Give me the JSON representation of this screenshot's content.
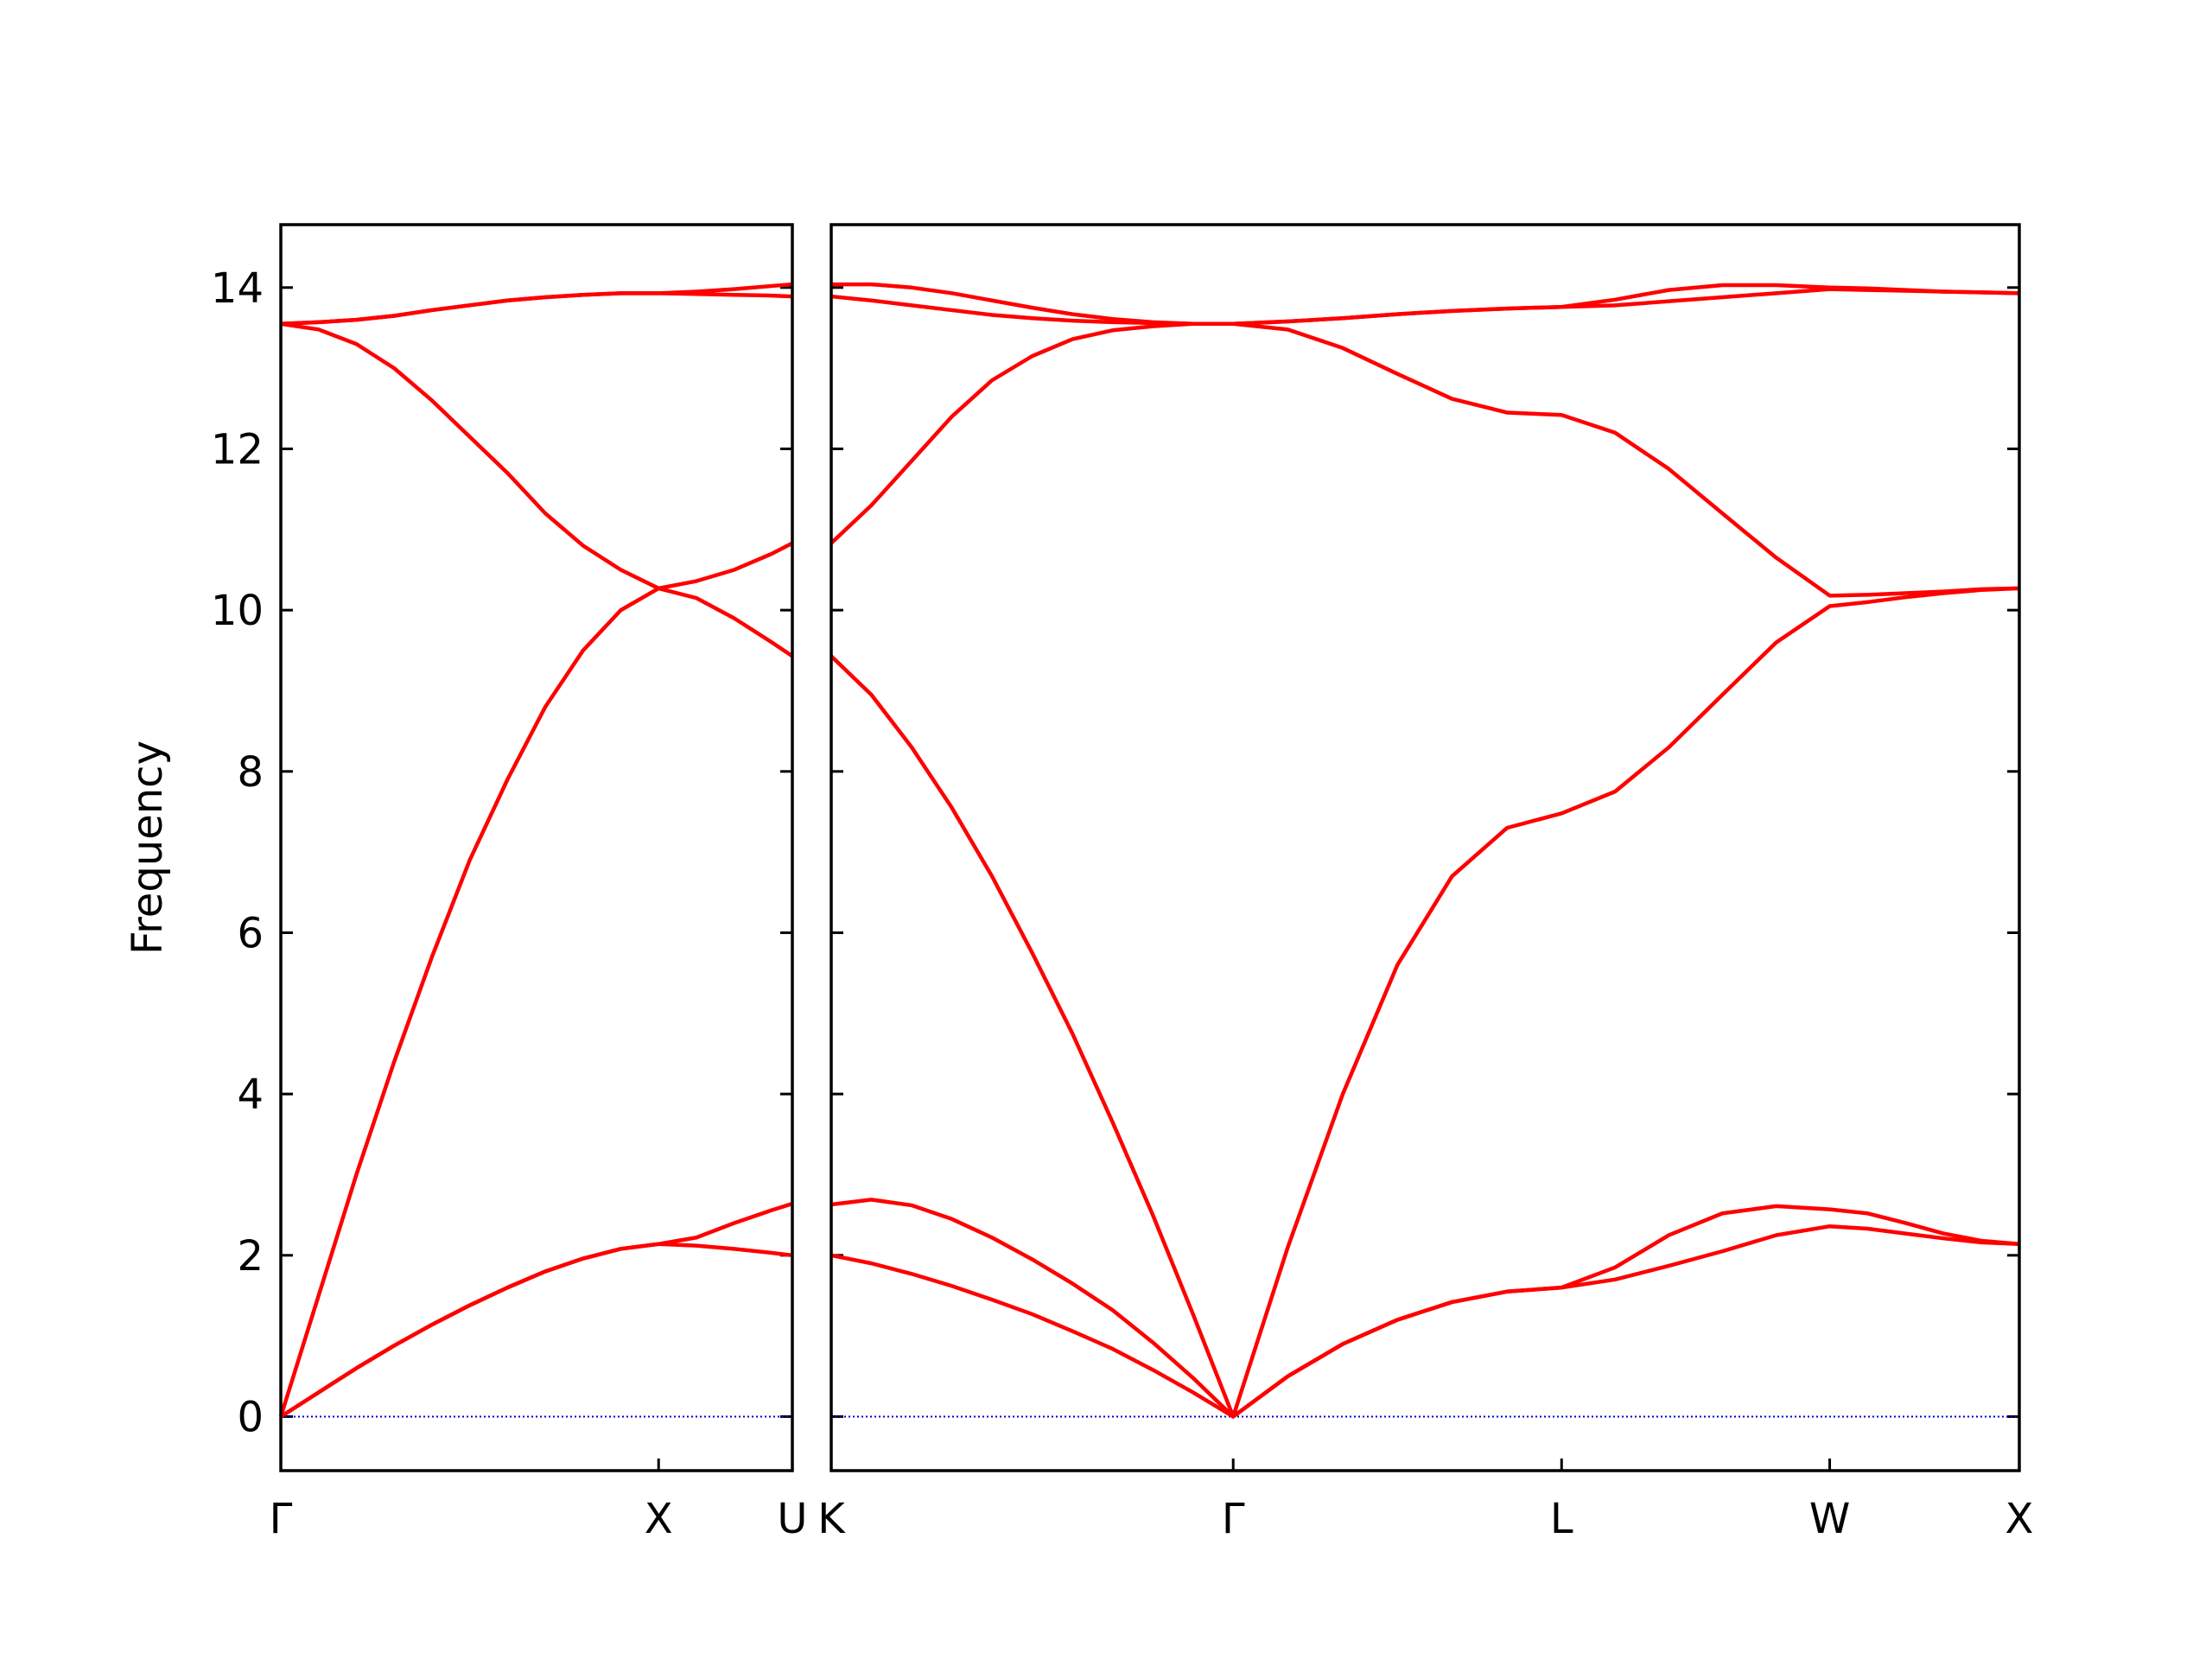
{
  "chart_data": [
    {
      "type": "line",
      "ylabel": "Frequency",
      "show_ytick_labels": true,
      "xlim": [
        0,
        1.354
      ],
      "ylim": [
        -0.67,
        14.78
      ],
      "xticks": [
        {
          "value": 0,
          "label": "Γ"
        },
        {
          "value": 1,
          "label": "X"
        },
        {
          "value": 1.354,
          "label": "U"
        }
      ],
      "yticks": [
        0,
        2,
        4,
        6,
        8,
        10,
        12,
        14
      ],
      "hline": {
        "y": 0,
        "color": "#0000cc"
      },
      "x": [
        0,
        0.1,
        0.2,
        0.3,
        0.4,
        0.5,
        0.6,
        0.7,
        0.8,
        0.9,
        1,
        1.1,
        1.2,
        1.3,
        1.354
      ],
      "series": [
        {
          "color": "#ff0000",
          "values": [
            0,
            0.3,
            0.6,
            0.88,
            1.14,
            1.38,
            1.6,
            1.8,
            1.96,
            2.08,
            2.14,
            2.12,
            2.08,
            2.03,
            2.0
          ]
        },
        {
          "color": "#ff0000",
          "values": [
            0,
            0.3,
            0.6,
            0.88,
            1.14,
            1.38,
            1.6,
            1.8,
            1.96,
            2.08,
            2.14,
            2.22,
            2.4,
            2.56,
            2.64
          ]
        },
        {
          "color": "#ff0000",
          "values": [
            0,
            1.5,
            3.0,
            4.4,
            5.7,
            6.9,
            7.9,
            8.8,
            9.5,
            10.0,
            10.27,
            10.15,
            9.9,
            9.6,
            9.43
          ]
        },
        {
          "color": "#ff0000",
          "values": [
            13.55,
            13.48,
            13.3,
            13.0,
            12.6,
            12.15,
            11.7,
            11.2,
            10.8,
            10.5,
            10.27,
            10.36,
            10.5,
            10.7,
            10.83
          ]
        },
        {
          "color": "#ff0000",
          "values": [
            13.55,
            13.57,
            13.6,
            13.65,
            13.72,
            13.78,
            13.84,
            13.88,
            13.91,
            13.93,
            13.93,
            13.92,
            13.91,
            13.9,
            13.89
          ]
        },
        {
          "color": "#ff0000",
          "values": [
            13.55,
            13.57,
            13.6,
            13.65,
            13.72,
            13.78,
            13.84,
            13.88,
            13.91,
            13.93,
            13.93,
            13.95,
            13.98,
            14.02,
            14.04
          ]
        }
      ]
    },
    {
      "type": "line",
      "show_ytick_labels": false,
      "xlim": [
        1.354,
        4.487
      ],
      "ylim": [
        -0.67,
        14.78
      ],
      "xticks": [
        {
          "value": 1.354,
          "label": "K"
        },
        {
          "value": 2.414,
          "label": "Γ"
        },
        {
          "value": 3.28,
          "label": "L"
        },
        {
          "value": 3.987,
          "label": "W"
        },
        {
          "value": 4.487,
          "label": "X"
        }
      ],
      "yticks": [
        0,
        2,
        4,
        6,
        8,
        10,
        12,
        14
      ],
      "hline": {
        "y": 0,
        "color": "#0000cc"
      },
      "x": [
        1.354,
        1.46,
        1.566,
        1.672,
        1.778,
        1.884,
        1.99,
        2.096,
        2.202,
        2.308,
        2.414,
        2.558,
        2.703,
        2.847,
        2.991,
        3.136,
        3.28,
        3.421,
        3.563,
        3.704,
        3.846,
        3.987,
        4.087,
        4.187,
        4.287,
        4.387,
        4.487
      ],
      "series": [
        {
          "color": "#ff0000",
          "values": [
            2.0,
            1.9,
            1.77,
            1.62,
            1.45,
            1.27,
            1.06,
            0.84,
            0.58,
            0.3,
            0,
            0.5,
            0.9,
            1.2,
            1.42,
            1.55,
            1.6,
            1.7,
            1.87,
            2.05,
            2.25,
            2.36,
            2.33,
            2.27,
            2.21,
            2.16,
            2.14
          ]
        },
        {
          "color": "#ff0000",
          "values": [
            2.63,
            2.69,
            2.62,
            2.45,
            2.22,
            1.95,
            1.65,
            1.32,
            0.92,
            0.48,
            0,
            0.5,
            0.9,
            1.2,
            1.42,
            1.55,
            1.6,
            1.85,
            2.25,
            2.52,
            2.61,
            2.57,
            2.52,
            2.4,
            2.27,
            2.18,
            2.14
          ]
        },
        {
          "color": "#ff0000",
          "values": [
            9.43,
            8.95,
            8.3,
            7.55,
            6.7,
            5.75,
            4.75,
            3.65,
            2.5,
            1.27,
            0,
            2.1,
            4.0,
            5.6,
            6.7,
            7.3,
            7.48,
            7.75,
            8.3,
            8.95,
            9.6,
            10.05,
            10.1,
            10.16,
            10.21,
            10.25,
            10.27
          ]
        },
        {
          "color": "#ff0000",
          "values": [
            10.83,
            11.3,
            11.85,
            12.4,
            12.85,
            13.15,
            13.36,
            13.47,
            13.52,
            13.55,
            13.55,
            13.48,
            13.25,
            12.93,
            12.62,
            12.45,
            12.42,
            12.2,
            11.75,
            11.2,
            10.65,
            10.18,
            10.19,
            10.21,
            10.23,
            10.26,
            10.27
          ]
        },
        {
          "color": "#ff0000",
          "values": [
            13.89,
            13.84,
            13.78,
            13.72,
            13.66,
            13.62,
            13.59,
            13.57,
            13.56,
            13.55,
            13.55,
            13.58,
            13.62,
            13.67,
            13.71,
            13.74,
            13.76,
            13.78,
            13.83,
            13.88,
            13.93,
            13.98,
            13.97,
            13.96,
            13.95,
            13.94,
            13.93
          ]
        },
        {
          "color": "#ff0000",
          "values": [
            14.04,
            14.04,
            14.0,
            13.93,
            13.84,
            13.75,
            13.67,
            13.61,
            13.57,
            13.55,
            13.55,
            13.58,
            13.62,
            13.67,
            13.71,
            13.74,
            13.76,
            13.85,
            13.97,
            14.03,
            14.03,
            14.0,
            13.99,
            13.97,
            13.95,
            13.94,
            13.93
          ]
        }
      ]
    }
  ]
}
